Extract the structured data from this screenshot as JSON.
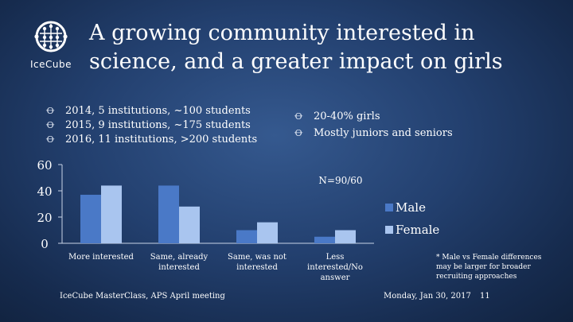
{
  "slide": {
    "title_line1": "A growing community interested in",
    "title_line2": "science, and a greater impact on girls",
    "logo_text": "IceCube",
    "bullets_left": [
      "2014, 5 institutions, ~100 students",
      "2015, 9 institutions, ~175 students",
      "2016, 11 institutions, >200 students"
    ],
    "bullets_right": [
      "20-40% girls",
      "Mostly juniors and seniors"
    ],
    "bullet_glyph": "Ꝋ",
    "note": "* Male vs Female differences may be larger for broader recruiting approaches",
    "footer_left": "IceCube MasterClass, APS April meeting",
    "footer_date": "Monday, Jan 30, 2017",
    "page_number": "11"
  },
  "chart_data": {
    "type": "bar",
    "categories": [
      "More interested",
      "Same, already interested",
      "Same, was not interested",
      "Less interested/No answer"
    ],
    "series": [
      {
        "name": "Male",
        "values": [
          37,
          44,
          10,
          5
        ],
        "color": "#4a79c7"
      },
      {
        "name": "Female",
        "values": [
          44,
          28,
          16,
          10
        ],
        "color": "#a9c5ef"
      }
    ],
    "ylim": [
      0,
      60
    ],
    "yticks": [
      "0",
      "20",
      "40",
      "60"
    ],
    "annotation": "N=90/60",
    "legend_position": "right",
    "grid": false
  }
}
